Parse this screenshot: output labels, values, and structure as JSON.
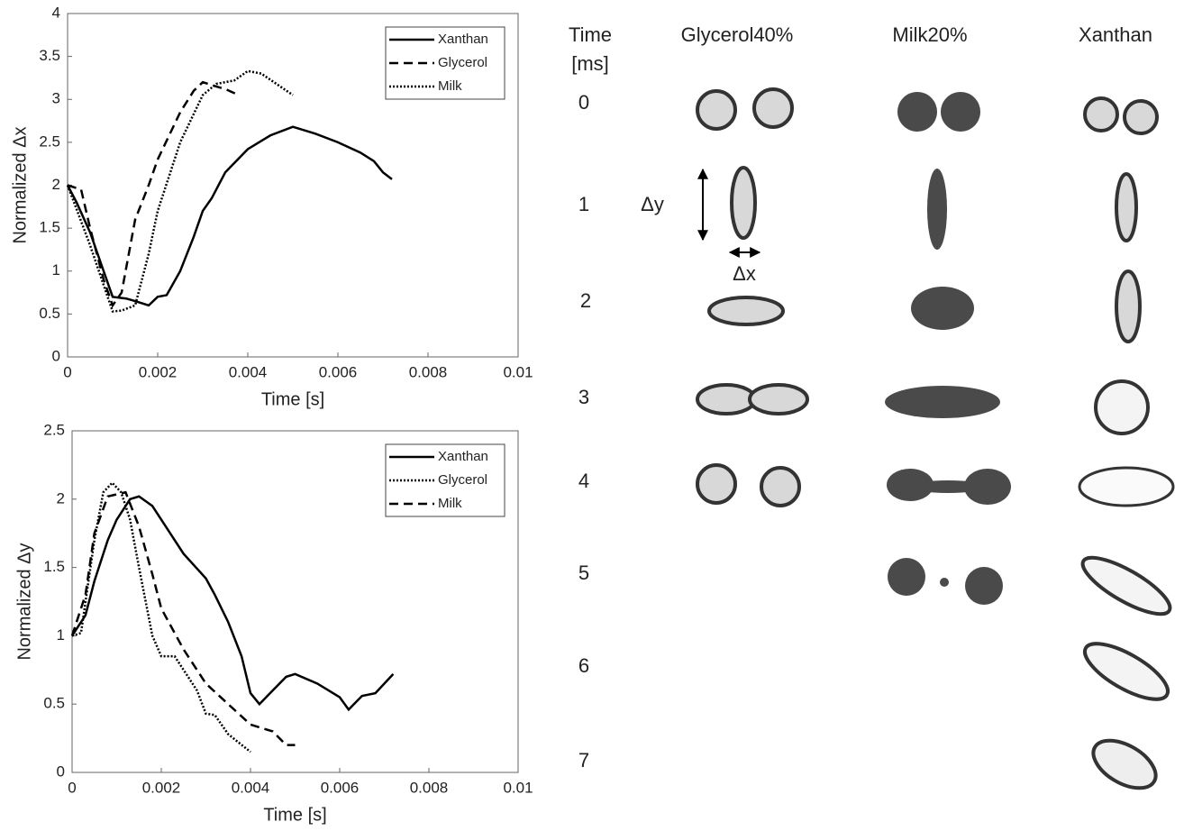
{
  "chart_data": [
    {
      "type": "line",
      "xlabel": "Time [s]",
      "ylabel": "Normalized Δx",
      "xlim": [
        0,
        0.01
      ],
      "xticks": [
        0,
        0.002,
        0.004,
        0.006,
        0.008,
        0.01
      ],
      "ylim": [
        0,
        4
      ],
      "yticks": [
        0,
        0.5,
        1,
        1.5,
        2,
        2.5,
        3,
        3.5,
        4
      ],
      "legend": "upper right",
      "series": [
        {
          "name": "Xanthan",
          "color": "#000000",
          "dash": "solid",
          "x": [
            0,
            0.0002,
            0.0005,
            0.0008,
            0.001,
            0.0013,
            0.0015,
            0.0018,
            0.002,
            0.0022,
            0.0025,
            0.0028,
            0.003,
            0.0032,
            0.0035,
            0.004,
            0.0045,
            0.005,
            0.0055,
            0.006,
            0.0065,
            0.0068,
            0.007,
            0.0072
          ],
          "values": [
            2,
            1.8,
            1.45,
            1.0,
            0.7,
            0.68,
            0.65,
            0.6,
            0.7,
            0.72,
            1.0,
            1.4,
            1.7,
            1.85,
            2.15,
            2.42,
            2.58,
            2.68,
            2.6,
            2.5,
            2.38,
            2.28,
            2.15,
            2.07
          ]
        },
        {
          "name": "Glycerol",
          "color": "#000000",
          "dash": "dashed",
          "x": [
            0,
            0.0003,
            0.0005,
            0.0008,
            0.001,
            0.0012,
            0.0015,
            0.0018,
            0.002,
            0.0025,
            0.0028,
            0.003,
            0.0033,
            0.0035,
            0.0038
          ],
          "values": [
            2,
            1.95,
            1.5,
            0.9,
            0.6,
            0.75,
            1.6,
            2.0,
            2.3,
            2.85,
            3.1,
            3.2,
            3.15,
            3.12,
            3.05
          ]
        },
        {
          "name": "Milk",
          "color": "#000000",
          "dash": "dotted",
          "x": [
            0,
            0.0005,
            0.001,
            0.0012,
            0.0015,
            0.0018,
            0.002,
            0.0025,
            0.003,
            0.0033,
            0.0037,
            0.004,
            0.0043,
            0.005
          ],
          "values": [
            2,
            1.3,
            0.53,
            0.54,
            0.6,
            1.2,
            1.7,
            2.5,
            3.05,
            3.18,
            3.22,
            3.33,
            3.3,
            3.05
          ]
        }
      ]
    },
    {
      "type": "line",
      "xlabel": "Time [s]",
      "ylabel": "Normalized Δy",
      "xlim": [
        0,
        0.01
      ],
      "xticks": [
        0,
        0.002,
        0.004,
        0.006,
        0.008,
        0.01
      ],
      "ylim": [
        0,
        2.5
      ],
      "yticks": [
        0,
        0.5,
        1,
        1.5,
        2,
        2.5
      ],
      "legend": "upper right",
      "series": [
        {
          "name": "Xanthan",
          "color": "#000000",
          "dash": "solid",
          "x": [
            0,
            0.0003,
            0.0005,
            0.0008,
            0.001,
            0.0013,
            0.0015,
            0.0018,
            0.002,
            0.0025,
            0.003,
            0.0032,
            0.0035,
            0.0038,
            0.004,
            0.0042,
            0.0045,
            0.0048,
            0.005,
            0.0055,
            0.006,
            0.0062,
            0.0065,
            0.0068,
            0.0072
          ],
          "values": [
            1,
            1.15,
            1.4,
            1.7,
            1.85,
            2.0,
            2.02,
            1.95,
            1.85,
            1.6,
            1.42,
            1.3,
            1.1,
            0.85,
            0.58,
            0.5,
            0.6,
            0.7,
            0.72,
            0.65,
            0.55,
            0.46,
            0.56,
            0.58,
            0.72
          ]
        },
        {
          "name": "Glycerol",
          "color": "#000000",
          "dash": "dotted",
          "x": [
            0,
            0.0002,
            0.0005,
            0.0007,
            0.0009,
            0.0011,
            0.0013,
            0.0015,
            0.0018,
            0.002,
            0.0023,
            0.0025,
            0.0028,
            0.003,
            0.0032,
            0.0035,
            0.004
          ],
          "values": [
            1,
            1.02,
            1.7,
            2.05,
            2.12,
            2.05,
            1.85,
            1.5,
            1.0,
            0.85,
            0.85,
            0.75,
            0.6,
            0.43,
            0.42,
            0.28,
            0.15
          ]
        },
        {
          "name": "Milk",
          "color": "#000000",
          "dash": "dashed",
          "x": [
            0,
            0.0003,
            0.0005,
            0.0008,
            0.0012,
            0.0015,
            0.0018,
            0.002,
            0.0025,
            0.003,
            0.0035,
            0.004,
            0.0045,
            0.0048,
            0.005
          ],
          "values": [
            1,
            1.3,
            1.75,
            2.02,
            2.05,
            1.8,
            1.45,
            1.2,
            0.9,
            0.65,
            0.5,
            0.35,
            0.3,
            0.2,
            0.2
          ]
        }
      ]
    }
  ],
  "panel": {
    "time_header": [
      "Time",
      "[ms]"
    ],
    "columns": [
      "Glycerol40%",
      "Milk20%",
      "Xanthan"
    ],
    "times": [
      0,
      1,
      2,
      3,
      4,
      5,
      6,
      7
    ],
    "dy_label": "Δy",
    "dx_label": "Δx"
  }
}
